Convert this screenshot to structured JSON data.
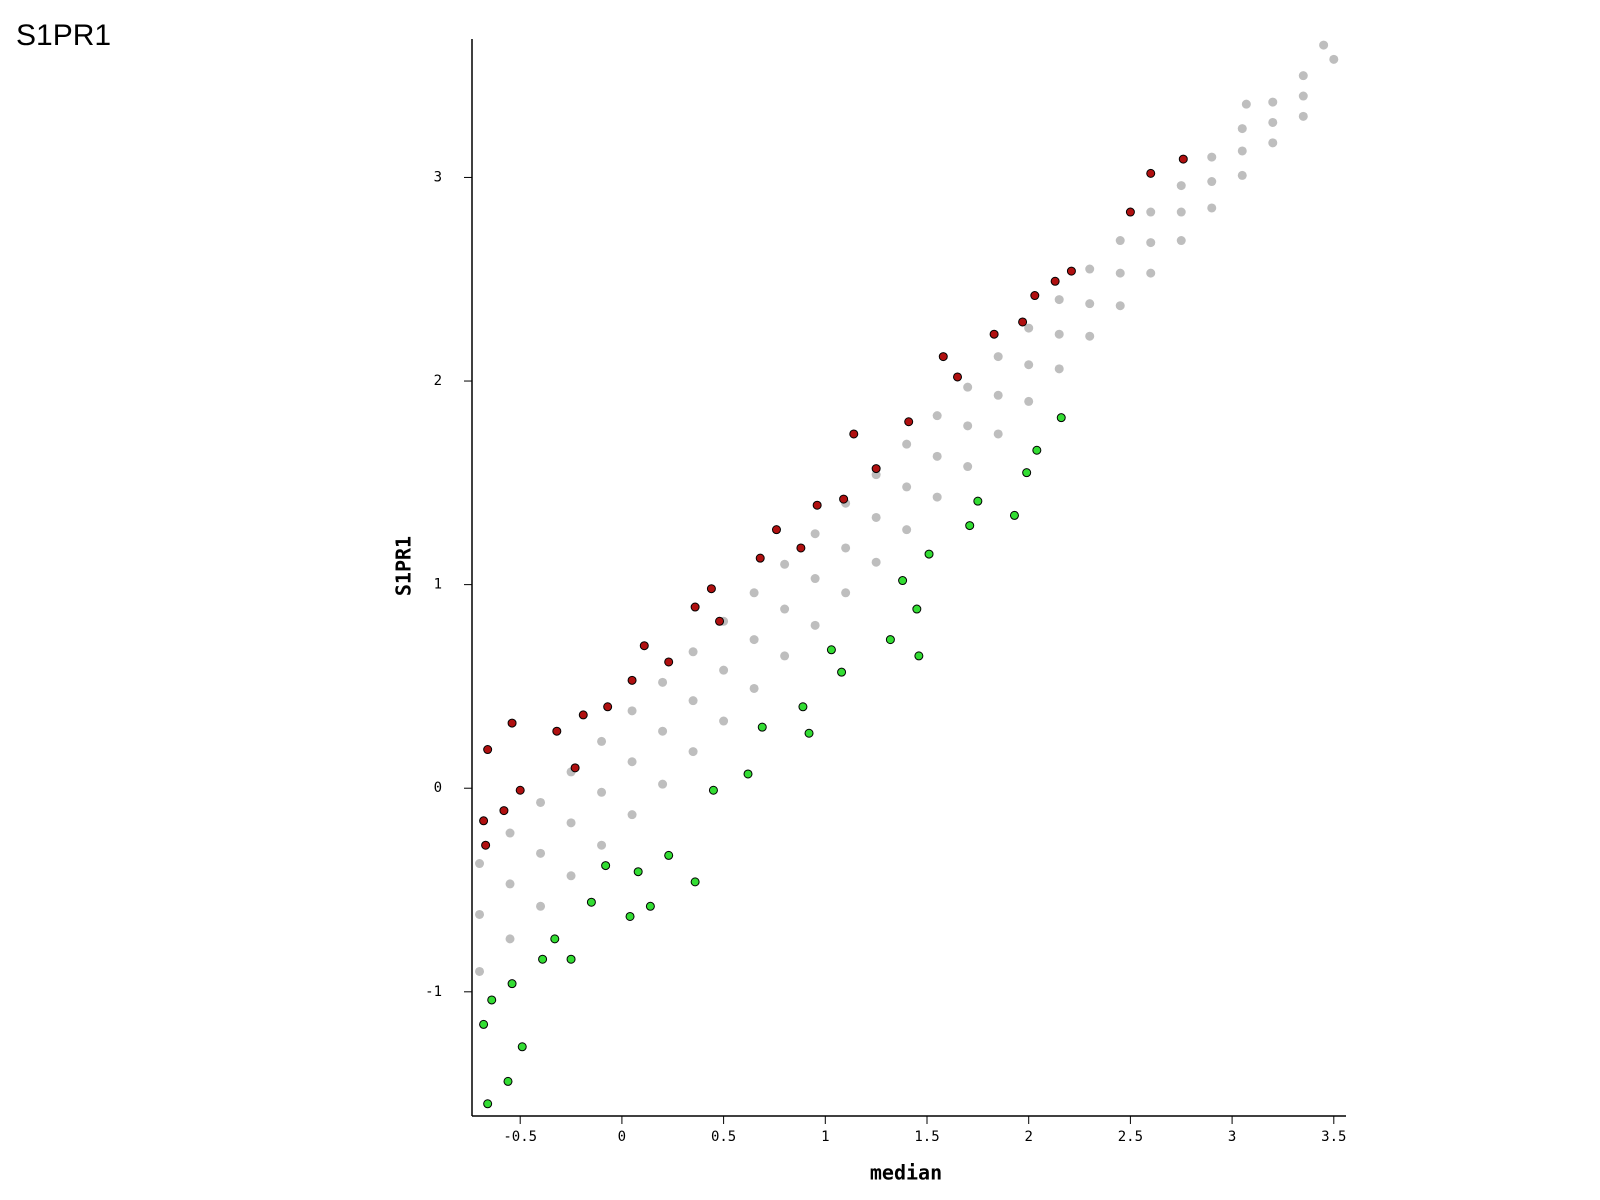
{
  "chart_data": {
    "type": "scatter",
    "title": "S1PR1",
    "x_label": "median",
    "y_label": "S1PR1",
    "xlim": [
      -0.737,
      3.56
    ],
    "ylim": [
      -1.61,
      3.68
    ],
    "xticks": [
      -0.5,
      0,
      0.5,
      1,
      1.5,
      2,
      2.5,
      3,
      3.5
    ],
    "yticks": [
      -1,
      0,
      1,
      2,
      3
    ],
    "grid": false,
    "series": [
      {
        "color": "#bebebe",
        "x": [
          -0.7,
          -0.7,
          -0.7,
          -0.55,
          -0.55,
          -0.55,
          -0.4,
          -0.4,
          -0.4,
          -0.25,
          -0.25,
          -0.25,
          -0.1,
          -0.1,
          -0.1,
          0.05,
          0.05,
          0.05,
          0.2,
          0.2,
          0.2,
          0.35,
          0.35,
          0.35,
          0.5,
          0.5,
          0.5,
          0.65,
          0.65,
          0.65,
          0.8,
          0.8,
          0.8,
          0.95,
          0.95,
          0.95,
          1.1,
          1.1,
          1.1,
          1.25,
          1.25,
          1.25,
          1.4,
          1.4,
          1.4,
          1.55,
          1.55,
          1.55,
          1.7,
          1.7,
          1.7,
          1.85,
          1.85,
          1.85,
          2.0,
          2.0,
          2.0,
          2.15,
          2.15,
          2.15,
          2.3,
          2.3,
          2.3,
          2.45,
          2.45,
          2.45,
          2.6,
          2.6,
          2.6,
          2.75,
          2.75,
          2.75,
          2.9,
          2.9,
          2.9,
          3.05,
          3.05,
          3.05,
          3.2,
          3.2,
          3.2,
          3.35,
          3.35,
          3.35,
          3.45,
          3.5,
          3.07
        ],
        "y": [
          -0.37,
          -0.62,
          -0.9,
          -0.22,
          -0.47,
          -0.74,
          -0.07,
          -0.32,
          -0.58,
          0.08,
          -0.17,
          -0.43,
          0.23,
          -0.02,
          -0.28,
          0.38,
          0.13,
          -0.13,
          0.52,
          0.28,
          0.02,
          0.67,
          0.43,
          0.18,
          0.82,
          0.58,
          0.33,
          0.96,
          0.73,
          0.49,
          1.1,
          0.88,
          0.65,
          1.25,
          1.03,
          0.8,
          1.4,
          1.18,
          0.96,
          1.54,
          1.33,
          1.11,
          1.69,
          1.48,
          1.27,
          1.83,
          1.63,
          1.43,
          1.97,
          1.78,
          1.58,
          2.12,
          1.93,
          1.74,
          2.26,
          2.08,
          1.9,
          2.4,
          2.23,
          2.06,
          2.55,
          2.38,
          2.22,
          2.69,
          2.53,
          2.37,
          2.83,
          2.68,
          2.53,
          2.96,
          2.83,
          2.69,
          3.1,
          2.98,
          2.85,
          3.24,
          3.13,
          3.01,
          3.37,
          3.27,
          3.17,
          3.5,
          3.4,
          3.3,
          3.65,
          3.58,
          3.36
        ]
      },
      {
        "color": "#b01010",
        "edgecolor": "#000000",
        "x": [
          -0.66,
          -0.54,
          -0.68,
          -0.67,
          -0.58,
          -0.5,
          -0.32,
          -0.19,
          -0.07,
          0.11,
          0.23,
          0.36,
          0.44,
          0.48,
          0.68,
          0.76,
          0.96,
          1.09,
          1.14,
          1.25,
          1.41,
          1.58,
          1.65,
          1.83,
          1.97,
          2.03,
          2.13,
          2.21,
          2.5,
          2.6,
          2.76,
          -0.23,
          0.05,
          0.88
        ],
        "y": [
          0.19,
          0.32,
          -0.16,
          -0.28,
          -0.11,
          -0.01,
          0.28,
          0.36,
          0.4,
          0.7,
          0.62,
          0.89,
          0.98,
          0.82,
          1.13,
          1.27,
          1.39,
          1.42,
          1.74,
          1.57,
          1.8,
          2.12,
          2.02,
          2.23,
          2.29,
          2.42,
          2.49,
          2.54,
          2.83,
          3.02,
          3.09,
          0.1,
          0.53,
          1.18
        ]
      },
      {
        "color": "#33dd33",
        "edgecolor": "#000000",
        "x": [
          -0.66,
          -0.56,
          -0.49,
          -0.68,
          -0.64,
          -0.54,
          -0.39,
          -0.25,
          -0.15,
          0.04,
          0.14,
          0.36,
          0.23,
          0.45,
          0.62,
          0.69,
          0.89,
          0.92,
          1.03,
          1.08,
          1.32,
          1.46,
          1.45,
          1.38,
          1.51,
          1.71,
          1.75,
          1.93,
          1.99,
          2.04,
          2.16,
          0.08,
          -0.08,
          -0.33
        ],
        "y": [
          -1.55,
          -1.44,
          -1.27,
          -1.16,
          -1.04,
          -0.96,
          -0.84,
          -0.84,
          -0.56,
          -0.63,
          -0.58,
          -0.46,
          -0.33,
          -0.01,
          0.07,
          0.3,
          0.4,
          0.27,
          0.68,
          0.57,
          0.73,
          0.65,
          0.88,
          1.02,
          1.15,
          1.29,
          1.41,
          1.34,
          1.55,
          1.66,
          1.82,
          -0.41,
          -0.38,
          -0.74
        ]
      }
    ]
  }
}
